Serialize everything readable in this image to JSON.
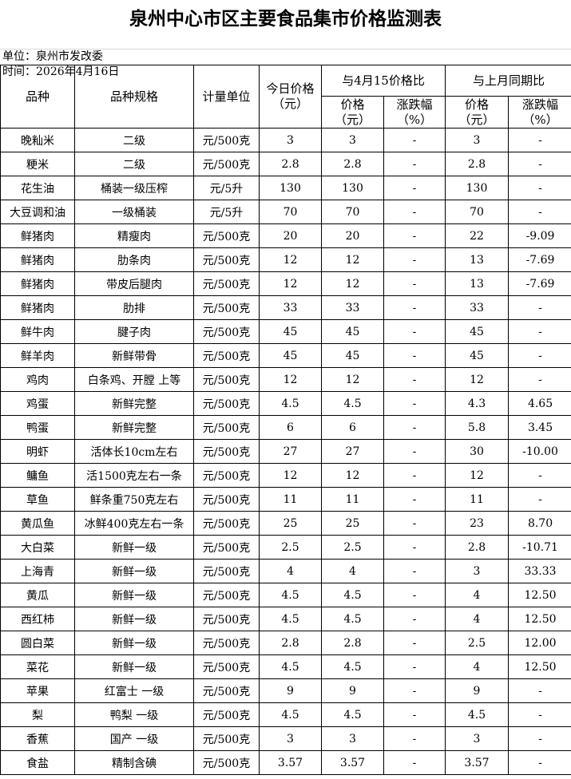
{
  "title": "泉州中心市区主要食品集市价格监测表",
  "unit_line": "单位：泉州市发改委",
  "date_line": "时间：2026年4月16日",
  "headers": {
    "variety": "品种",
    "spec": "品种规格",
    "unit": "计量单位",
    "today_price": "今日价格",
    "today_price_unit": "（元）",
    "vs_prev_day": "与4月15价格比",
    "vs_last_month": "与上月同期比",
    "price": "价格",
    "price_unit": "（元）",
    "change": "涨跌幅",
    "change_unit": "（%）"
  },
  "rows": [
    [
      "晚籼米",
      "二级",
      "元/500克",
      "3",
      "3",
      "-",
      "3",
      "-"
    ],
    [
      "粳米",
      "二级",
      "元/500克",
      "2.8",
      "2.8",
      "-",
      "2.8",
      "-"
    ],
    [
      "花生油",
      "桶装一级压榨",
      "元/5升",
      "130",
      "130",
      "-",
      "130",
      "-"
    ],
    [
      "大豆调和油",
      "一级桶装",
      "元/5升",
      "70",
      "70",
      "-",
      "70",
      "-"
    ],
    [
      "鲜猪肉",
      "精瘦肉",
      "元/500克",
      "20",
      "20",
      "-",
      "22",
      "-9.09"
    ],
    [
      "鲜猪肉",
      "肋条肉",
      "元/500克",
      "12",
      "12",
      "-",
      "13",
      "-7.69"
    ],
    [
      "鲜猪肉",
      "带皮后腿肉",
      "元/500克",
      "12",
      "12",
      "-",
      "13",
      "-7.69"
    ],
    [
      "鲜猪肉",
      "肋排",
      "元/500克",
      "33",
      "33",
      "-",
      "33",
      "-"
    ],
    [
      "鲜牛肉",
      "腱子肉",
      "元/500克",
      "45",
      "45",
      "-",
      "45",
      "-"
    ],
    [
      "鲜羊肉",
      "新鲜带骨",
      "元/500克",
      "45",
      "45",
      "-",
      "45",
      "-"
    ],
    [
      "鸡肉",
      "白条鸡、开膛 上等",
      "元/500克",
      "12",
      "12",
      "-",
      "12",
      "-"
    ],
    [
      "鸡蛋",
      "新鲜完整",
      "元/500克",
      "4.5",
      "4.5",
      "-",
      "4.3",
      "4.65"
    ],
    [
      "鸭蛋",
      "新鲜完整",
      "元/500克",
      "6",
      "6",
      "-",
      "5.8",
      "3.45"
    ],
    [
      "明虾",
      "活体长10cm左右",
      "元/500克",
      "27",
      "27",
      "-",
      "30",
      "-10.00"
    ],
    [
      "鳙鱼",
      "活1500克左右一条",
      "元/500克",
      "12",
      "12",
      "-",
      "12",
      "-"
    ],
    [
      "草鱼",
      "鲜条重750克左右",
      "元/500克",
      "11",
      "11",
      "-",
      "11",
      "-"
    ],
    [
      "黄瓜鱼",
      "冰鲜400克左右一条",
      "元/500克",
      "25",
      "25",
      "-",
      "23",
      "8.70"
    ],
    [
      "大白菜",
      "新鲜一级",
      "元/500克",
      "2.5",
      "2.5",
      "-",
      "2.8",
      "-10.71"
    ],
    [
      "上海青",
      "新鲜一级",
      "元/500克",
      "4",
      "4",
      "-",
      "3",
      "33.33"
    ],
    [
      "黄瓜",
      "新鲜一级",
      "元/500克",
      "4.5",
      "4.5",
      "-",
      "4",
      "12.50"
    ],
    [
      "西红柿",
      "新鲜一级",
      "元/500克",
      "4.5",
      "4.5",
      "-",
      "4",
      "12.50"
    ],
    [
      "圆白菜",
      "新鲜一级",
      "元/500克",
      "2.8",
      "2.8",
      "-",
      "2.5",
      "12.00"
    ],
    [
      "菜花",
      "新鲜一级",
      "元/500克",
      "4.5",
      "4.5",
      "-",
      "4",
      "12.50"
    ],
    [
      "苹果",
      "红富士 一级",
      "元/500克",
      "9",
      "9",
      "-",
      "9",
      "-"
    ],
    [
      "梨",
      "鸭梨 一级",
      "元/500克",
      "4.5",
      "4.5",
      "-",
      "4.5",
      "-"
    ],
    [
      "香蕉",
      "国产 一级",
      "元/500克",
      "3",
      "3",
      "-",
      "3",
      "-"
    ],
    [
      "食盐",
      "精制含碘",
      "元/500克",
      "3.57",
      "3.57",
      "-",
      "3.57",
      "-"
    ]
  ]
}
